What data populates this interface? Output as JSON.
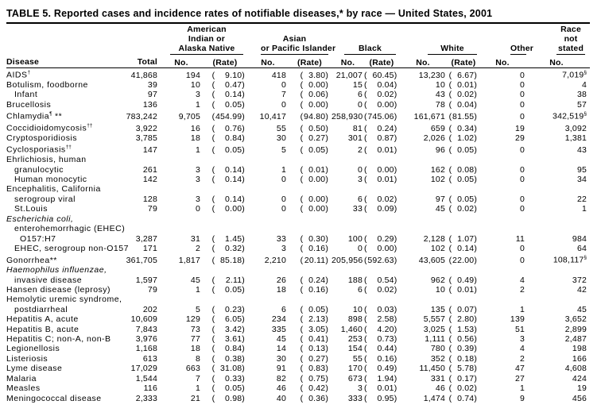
{
  "table_title": "TABLE 5. Reported cases and incidence rates of notifiable diseases,* by race — United States, 2001",
  "colors": {
    "text": "#000000",
    "background": "#ffffff",
    "rule": "#000000"
  },
  "header": {
    "disease_label": "Disease",
    "total_label": "Total",
    "no_label": "No.",
    "rate_label": "(Rate)",
    "groups": {
      "american_indian": {
        "lines": [
          "American",
          "Indian or",
          "Alaska Native"
        ]
      },
      "asian_pacific": {
        "lines": [
          "Asian",
          "or Pacific Islander"
        ]
      },
      "black": {
        "lines": [
          "Black"
        ]
      },
      "white": {
        "lines": [
          "White"
        ]
      },
      "other": {
        "lines": [
          "Other"
        ]
      },
      "race_not_stated": {
        "lines": [
          "Race",
          "not",
          "stated"
        ]
      }
    }
  },
  "rows": [
    {
      "disease": "AIDS",
      "sup": "†",
      "total": "41,868",
      "ai_no": "194",
      "ai_rate": "9.10",
      "ap_no": "418",
      "ap_rate": "3.80",
      "bl_no": "21,007",
      "bl_rate": "60.45",
      "wh_no": "13,230",
      "wh_rate": "6.67",
      "other_no": "0",
      "ns_no": "7,019",
      "ns_sup": "§"
    },
    {
      "disease": "Botulism, foodborne",
      "total": "39",
      "ai_no": "10",
      "ai_rate": "0.47",
      "ap_no": "0",
      "ap_rate": "0.00",
      "bl_no": "15",
      "bl_rate": "0.04",
      "wh_no": "10",
      "wh_rate": "0.01",
      "other_no": "0",
      "ns_no": "4"
    },
    {
      "disease": "Infant",
      "indent": 1,
      "total": "97",
      "ai_no": "3",
      "ai_rate": "0.14",
      "ap_no": "7",
      "ap_rate": "0.06",
      "bl_no": "6",
      "bl_rate": "0.02",
      "wh_no": "43",
      "wh_rate": "0.02",
      "other_no": "0",
      "ns_no": "38"
    },
    {
      "disease": "Brucellosis",
      "total": "136",
      "ai_no": "1",
      "ai_rate": "0.05",
      "ap_no": "0",
      "ap_rate": "0.00",
      "bl_no": "0",
      "bl_rate": "0.00",
      "wh_no": "78",
      "wh_rate": "0.04",
      "other_no": "0",
      "ns_no": "57"
    },
    {
      "disease": "Chlamydia",
      "sup": "¶",
      "after": " **",
      "total": "783,242",
      "ai_no": "9,705",
      "ai_rate": "454.99",
      "ap_no": "10,417",
      "ap_rate": "94.80",
      "bl_no": "258,930",
      "bl_rate": "745.06",
      "wh_no": "161,671",
      "wh_rate": "81.55",
      "other_no": "0",
      "ns_no": "342,519",
      "ns_sup": "§"
    },
    {
      "disease": "Coccidioidomycosis",
      "sup": "††",
      "total": "3,922",
      "ai_no": "16",
      "ai_rate": "0.76",
      "ap_no": "55",
      "ap_rate": "0.50",
      "bl_no": "81",
      "bl_rate": "0.24",
      "wh_no": "659",
      "wh_rate": "0.34",
      "other_no": "19",
      "ns_no": "3,092"
    },
    {
      "disease": "Cryptosporidiosis",
      "total": "3,785",
      "ai_no": "18",
      "ai_rate": "0.84",
      "ap_no": "30",
      "ap_rate": "0.27",
      "bl_no": "301",
      "bl_rate": "0.87",
      "wh_no": "2,026",
      "wh_rate": "1.02",
      "other_no": "29",
      "ns_no": "1,381"
    },
    {
      "disease": "Cyclosporiasis",
      "sup": "††",
      "total": "147",
      "ai_no": "1",
      "ai_rate": "0.05",
      "ap_no": "5",
      "ap_rate": "0.05",
      "bl_no": "2",
      "bl_rate": "0.01",
      "wh_no": "96",
      "wh_rate": "0.05",
      "other_no": "0",
      "ns_no": "43"
    },
    {
      "disease": "Ehrlichiosis, human",
      "label": true
    },
    {
      "disease": "granulocytic",
      "indent": 1,
      "total": "261",
      "ai_no": "3",
      "ai_rate": "0.14",
      "ap_no": "1",
      "ap_rate": "0.01",
      "bl_no": "0",
      "bl_rate": "0.00",
      "wh_no": "162",
      "wh_rate": "0.08",
      "other_no": "0",
      "ns_no": "95"
    },
    {
      "disease": "Human monocytic",
      "indent": 1,
      "total": "142",
      "ai_no": "3",
      "ai_rate": "0.14",
      "ap_no": "0",
      "ap_rate": "0.00",
      "bl_no": "3",
      "bl_rate": "0.01",
      "wh_no": "102",
      "wh_rate": "0.05",
      "other_no": "0",
      "ns_no": "34"
    },
    {
      "disease": "Encephalitis, California",
      "label": true
    },
    {
      "disease": "serogroup viral",
      "indent": 1,
      "total": "128",
      "ai_no": "3",
      "ai_rate": "0.14",
      "ap_no": "0",
      "ap_rate": "0.00",
      "bl_no": "6",
      "bl_rate": "0.02",
      "wh_no": "97",
      "wh_rate": "0.05",
      "other_no": "0",
      "ns_no": "22"
    },
    {
      "disease": "St.Louis",
      "indent": 1,
      "total": "79",
      "ai_no": "0",
      "ai_rate": "0.00",
      "ap_no": "0",
      "ap_rate": "0.00",
      "bl_no": "33",
      "bl_rate": "0.09",
      "wh_no": "45",
      "wh_rate": "0.02",
      "other_no": "0",
      "ns_no": "1"
    },
    {
      "disease": "Escherichia coli,",
      "label": true,
      "italic": true
    },
    {
      "disease": "enterohemorrhagic (EHEC)",
      "label": true,
      "indent": 1
    },
    {
      "disease": "O157:H7",
      "indent": 2,
      "total": "3,287",
      "ai_no": "31",
      "ai_rate": "1.45",
      "ap_no": "33",
      "ap_rate": "0.30",
      "bl_no": "100",
      "bl_rate": "0.29",
      "wh_no": "2,128",
      "wh_rate": "1.07",
      "other_no": "11",
      "ns_no": "984"
    },
    {
      "disease": "EHEC, serogroup non-O157",
      "indent": 1,
      "total": "171",
      "ai_no": "2",
      "ai_rate": "0.32",
      "ap_no": "3",
      "ap_rate": "0.16",
      "bl_no": "0",
      "bl_rate": "0.00",
      "wh_no": "102",
      "wh_rate": "0.14",
      "other_no": "0",
      "ns_no": "64"
    },
    {
      "disease": "Gonorrhea**",
      "total": "361,705",
      "ai_no": "1,817",
      "ai_rate": "85.18",
      "ap_no": "2,210",
      "ap_rate": "20.11",
      "bl_no": "205,956",
      "bl_rate": "592.63",
      "wh_no": "43,605",
      "wh_rate": "22.00",
      "other_no": "0",
      "ns_no": "108,117",
      "ns_sup": "§"
    },
    {
      "disease": "Haemophilus influenzae,",
      "label": true,
      "italic": true
    },
    {
      "disease": "invasive disease",
      "indent": 1,
      "total": "1,597",
      "ai_no": "45",
      "ai_rate": "2.11",
      "ap_no": "26",
      "ap_rate": "0.24",
      "bl_no": "188",
      "bl_rate": "0.54",
      "wh_no": "962",
      "wh_rate": "0.49",
      "other_no": "4",
      "ns_no": "372"
    },
    {
      "disease": "Hansen disease (leprosy)",
      "total": "79",
      "ai_no": "1",
      "ai_rate": "0.05",
      "ap_no": "18",
      "ap_rate": "0.16",
      "bl_no": "6",
      "bl_rate": "0.02",
      "wh_no": "10",
      "wh_rate": "0.01",
      "other_no": "2",
      "ns_no": "42"
    },
    {
      "disease": "Hemolytic uremic syndrome,",
      "label": true
    },
    {
      "disease": "postdiarrheal",
      "indent": 1,
      "total": "202",
      "ai_no": "5",
      "ai_rate": "0.23",
      "ap_no": "6",
      "ap_rate": "0.05",
      "bl_no": "10",
      "bl_rate": "0.03",
      "wh_no": "135",
      "wh_rate": "0.07",
      "other_no": "1",
      "ns_no": "45"
    },
    {
      "disease": "Hepatitis A, acute",
      "total": "10,609",
      "ai_no": "129",
      "ai_rate": "6.05",
      "ap_no": "234",
      "ap_rate": "2.13",
      "bl_no": "898",
      "bl_rate": "2.58",
      "wh_no": "5,557",
      "wh_rate": "2.80",
      "other_no": "139",
      "ns_no": "3,652"
    },
    {
      "disease": "Hepatitis B, acute",
      "total": "7,843",
      "ai_no": "73",
      "ai_rate": "3.42",
      "ap_no": "335",
      "ap_rate": "3.05",
      "bl_no": "1,460",
      "bl_rate": "4.20",
      "wh_no": "3,025",
      "wh_rate": "1.53",
      "other_no": "51",
      "ns_no": "2,899"
    },
    {
      "disease": "Hepatitis C; non-A, non-B",
      "total": "3,976",
      "ai_no": "77",
      "ai_rate": "3.61",
      "ap_no": "45",
      "ap_rate": "0.41",
      "bl_no": "253",
      "bl_rate": "0.73",
      "wh_no": "1,111",
      "wh_rate": "0.56",
      "other_no": "3",
      "ns_no": "2,487"
    },
    {
      "disease": "Legionellosis",
      "total": "1,168",
      "ai_no": "18",
      "ai_rate": "0.84",
      "ap_no": "14",
      "ap_rate": "0.13",
      "bl_no": "154",
      "bl_rate": "0.44",
      "wh_no": "780",
      "wh_rate": "0.39",
      "other_no": "4",
      "ns_no": "198"
    },
    {
      "disease": "Listeriosis",
      "total": "613",
      "ai_no": "8",
      "ai_rate": "0.38",
      "ap_no": "30",
      "ap_rate": "0.27",
      "bl_no": "55",
      "bl_rate": "0.16",
      "wh_no": "352",
      "wh_rate": "0.18",
      "other_no": "2",
      "ns_no": "166"
    },
    {
      "disease": "Lyme disease",
      "total": "17,029",
      "ai_no": "663",
      "ai_rate": "31.08",
      "ap_no": "91",
      "ap_rate": "0.83",
      "bl_no": "170",
      "bl_rate": "0.49",
      "wh_no": "11,450",
      "wh_rate": "5.78",
      "other_no": "47",
      "ns_no": "4,608"
    },
    {
      "disease": "Malaria",
      "total": "1,544",
      "ai_no": "7",
      "ai_rate": "0.33",
      "ap_no": "82",
      "ap_rate": "0.75",
      "bl_no": "673",
      "bl_rate": "1.94",
      "wh_no": "331",
      "wh_rate": "0.17",
      "other_no": "27",
      "ns_no": "424"
    },
    {
      "disease": "Measles",
      "total": "116",
      "ai_no": "1",
      "ai_rate": "0.05",
      "ap_no": "46",
      "ap_rate": "0.42",
      "bl_no": "3",
      "bl_rate": "0.01",
      "wh_no": "46",
      "wh_rate": "0.02",
      "other_no": "1",
      "ns_no": "19"
    },
    {
      "disease": "Meningococcal disease",
      "total": "2,333",
      "ai_no": "21",
      "ai_rate": "0.98",
      "ap_no": "40",
      "ap_rate": "0.36",
      "bl_no": "333",
      "bl_rate": "0.95",
      "wh_no": "1,474",
      "wh_rate": "0.74",
      "other_no": "9",
      "ns_no": "456"
    }
  ]
}
